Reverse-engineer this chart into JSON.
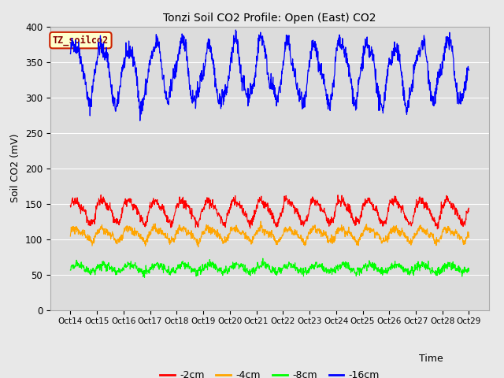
{
  "title": "Tonzi Soil CO2 Profile: Open (East) CO2",
  "ylabel": "Soil CO2 (mV)",
  "xlabel": "Time",
  "legend_label": "TZ_soilco2",
  "series_labels": [
    "-2cm",
    "-4cm",
    "-8cm",
    "-16cm"
  ],
  "series_colors": [
    "red",
    "orange",
    "lime",
    "blue"
  ],
  "ylim": [
    0,
    400
  ],
  "yticks": [
    0,
    50,
    100,
    150,
    200,
    250,
    300,
    350,
    400
  ],
  "xtick_labels": [
    "Oct 14",
    "Oct 15",
    "Oct 16",
    "Oct 17",
    "Oct 18",
    "Oct 19",
    "Oct 20",
    "Oct 21",
    "Oct 22",
    "Oct 23",
    "Oct 24",
    "Oct 25",
    "Oct 26",
    "Oct 27",
    "Oct 28",
    "Oct 29"
  ],
  "n_points": 1500,
  "bg_color": "#e8e8e8",
  "plot_bg_color": "#dcdcdc",
  "legend_box_color": "#ffffcc",
  "legend_text_color": "#880000",
  "legend_border_color": "#cc2200"
}
